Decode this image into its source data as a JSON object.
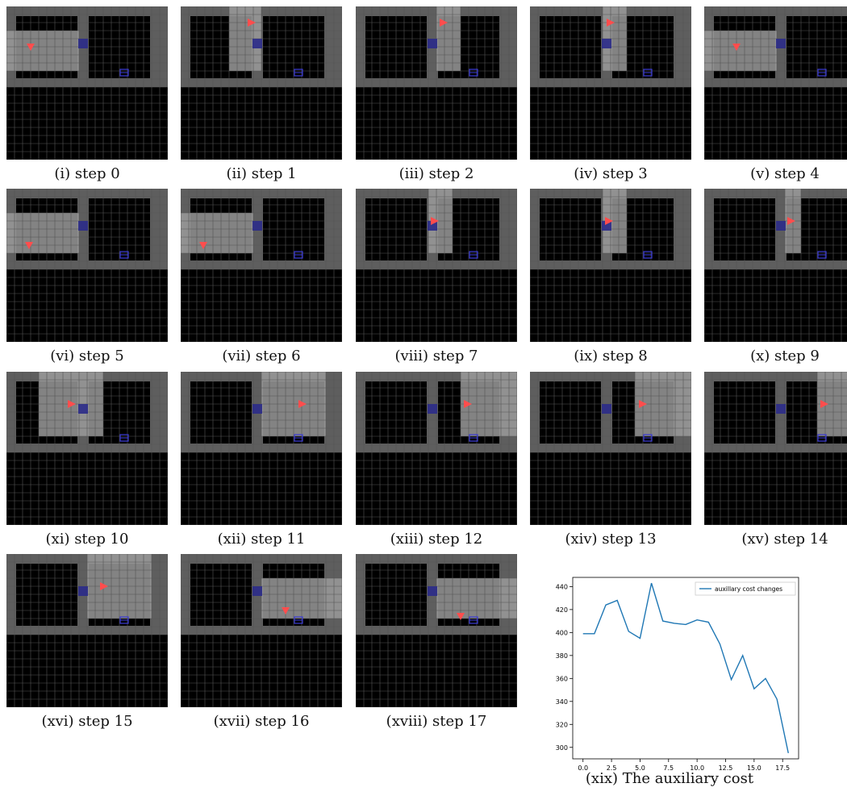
{
  "panels": [
    {
      "caption": "(i) step 0"
    },
    {
      "caption": "(ii) step 1"
    },
    {
      "caption": "(iii) step 2"
    },
    {
      "caption": "(iv) step 3"
    },
    {
      "caption": "(v) step 4"
    },
    {
      "caption": "(vi) step 5"
    },
    {
      "caption": "(vii) step 6"
    },
    {
      "caption": "(viii) step 7"
    },
    {
      "caption": "(ix) step 8"
    },
    {
      "caption": "(x) step 9"
    },
    {
      "caption": "(xi) step 10"
    },
    {
      "caption": "(xii) step 11"
    },
    {
      "caption": "(xiii) step 12"
    },
    {
      "caption": "(xiv) step 13"
    },
    {
      "caption": "(xv) step 14"
    },
    {
      "caption": "(xvi) step 15"
    },
    {
      "caption": "(xvii) step 16"
    },
    {
      "caption": "(xviii) step 17"
    }
  ],
  "chart_caption": "(xix) The auxiliary cost",
  "chart_data": {
    "type": "line",
    "title": "",
    "xlabel": "",
    "ylabel": "",
    "x": [
      0,
      1,
      2,
      3,
      4,
      5,
      6,
      7,
      8,
      9,
      10,
      11,
      12,
      13,
      14,
      15,
      16,
      17,
      18
    ],
    "series": [
      {
        "name": "auxillary cost changes",
        "values": [
          399,
          399,
          424,
          428,
          401,
          395,
          443,
          410,
          408,
          407,
          411,
          409,
          390,
          359,
          380,
          351,
          360,
          342,
          295
        ]
      }
    ],
    "xlim": [
      -0.9,
      18.9
    ],
    "ylim": [
      290,
      448
    ],
    "xticks": [
      "0.0",
      "2.5",
      "5.0",
      "7.5",
      "10.0",
      "12.5",
      "15.0",
      "17.5"
    ],
    "yticks": [
      "300",
      "320",
      "340",
      "360",
      "380",
      "400",
      "420",
      "440"
    ],
    "legend_position": "top-right",
    "grid": false,
    "line_color": "#1f77b4"
  }
}
